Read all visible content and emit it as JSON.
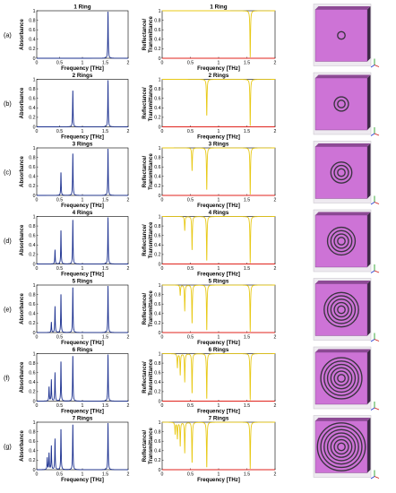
{
  "panel_letters": [
    "(a)",
    "(b)",
    "(c)",
    "(d)",
    "(e)",
    "(f)",
    "(g)"
  ],
  "colors": {
    "absorbance": "#1a2f8f",
    "reflectance": "#e8c916",
    "transmittance": "#e0231c",
    "model_face": "#cd73d6",
    "model_side": "#3b2745",
    "ring": "#3a3340",
    "axis_x_arrow": "#d0201a",
    "axis_y_arrow": "#2aa02a",
    "axis_z_arrow": "#2a3fd0"
  },
  "icons": [
    "metamaterial-model-icon",
    "axes-triad-icon"
  ],
  "chart_data": [
    {
      "type": "line",
      "title": "1 Ring",
      "xlabel": "Frequency [THz]",
      "ylabel": "Absorbance",
      "xlim": [
        0,
        2
      ],
      "ylim": [
        0,
        1
      ],
      "xticks": [
        "0",
        "0.5",
        "1",
        "1.5",
        "2"
      ],
      "yticks": [
        "0",
        "0.2",
        "0.4",
        "0.6",
        "0.8",
        "1"
      ],
      "series": [
        {
          "role": "absorbance",
          "peaks": [
            {
              "x": 1.56,
              "y": 0.98
            }
          ]
        }
      ]
    },
    {
      "type": "line",
      "title": "1 Ring",
      "xlabel": "Frequency [THz]",
      "ylabel": "Reflectance/ Transmittance",
      "xlim": [
        0,
        2
      ],
      "ylim": [
        0,
        1
      ],
      "xticks": [
        "0",
        "0.5",
        "1",
        "1.5",
        "2"
      ],
      "yticks": [
        "0",
        "0.2",
        "0.4",
        "0.6",
        "0.8",
        "1"
      ],
      "series": [
        {
          "role": "reflectance",
          "baseline": 1,
          "dips": [
            {
              "x": 1.56,
              "y": 0.02
            }
          ]
        },
        {
          "role": "transmittance",
          "baseline": 0
        }
      ]
    },
    {
      "type": "line",
      "title": "2 Rings",
      "xlabel": "Frequency [THz]",
      "ylabel": "Absorbance",
      "xlim": [
        0,
        2
      ],
      "ylim": [
        0,
        1
      ],
      "xticks": [
        "0",
        "0.5",
        "1",
        "1.5",
        "2"
      ],
      "yticks": [
        "0",
        "0.2",
        "0.4",
        "0.6",
        "0.8",
        "1"
      ],
      "series": [
        {
          "role": "absorbance",
          "peaks": [
            {
              "x": 0.79,
              "y": 0.78
            },
            {
              "x": 1.56,
              "y": 0.98
            }
          ]
        }
      ]
    },
    {
      "type": "line",
      "title": "2 Rings",
      "xlabel": "Frequency [THz]",
      "ylabel": "Reflectance/ Transmittance",
      "xlim": [
        0,
        2
      ],
      "ylim": [
        0,
        1
      ],
      "xticks": [
        "0",
        "0.5",
        "1",
        "1.5",
        "2"
      ],
      "yticks": [
        "0",
        "0.2",
        "0.4",
        "0.6",
        "0.8",
        "1"
      ],
      "series": [
        {
          "role": "reflectance",
          "baseline": 1,
          "dips": [
            {
              "x": 0.79,
              "y": 0.22
            },
            {
              "x": 1.56,
              "y": 0.02
            }
          ]
        },
        {
          "role": "transmittance",
          "baseline": 0
        }
      ]
    },
    {
      "type": "line",
      "title": "3 Rings",
      "xlabel": "Frequency [THz]",
      "ylabel": "Absorbance",
      "xlim": [
        0,
        2
      ],
      "ylim": [
        0,
        1
      ],
      "xticks": [
        "0",
        "0.5",
        "1",
        "1.5",
        "2"
      ],
      "yticks": [
        "0",
        "0.2",
        "0.4",
        "0.6",
        "0.8",
        "1"
      ],
      "series": [
        {
          "role": "absorbance",
          "peaks": [
            {
              "x": 0.53,
              "y": 0.49
            },
            {
              "x": 0.79,
              "y": 0.9
            },
            {
              "x": 1.56,
              "y": 0.98
            }
          ]
        }
      ]
    },
    {
      "type": "line",
      "title": "3 Rings",
      "xlabel": "Frequency [THz]",
      "ylabel": "Reflectance/ Transmittance",
      "xlim": [
        0,
        2
      ],
      "ylim": [
        0,
        1
      ],
      "xticks": [
        "0",
        "0.5",
        "1",
        "1.5",
        "2"
      ],
      "yticks": [
        "0",
        "0.2",
        "0.4",
        "0.6",
        "0.8",
        "1"
      ],
      "series": [
        {
          "role": "reflectance",
          "baseline": 1,
          "dips": [
            {
              "x": 0.53,
              "y": 0.51
            },
            {
              "x": 0.79,
              "y": 0.1
            },
            {
              "x": 1.56,
              "y": 0.02
            }
          ]
        },
        {
          "role": "transmittance",
          "baseline": 0
        }
      ]
    },
    {
      "type": "line",
      "title": "4 Rings",
      "xlabel": "Frequency [THz]",
      "ylabel": "Absorbance",
      "xlim": [
        0,
        2
      ],
      "ylim": [
        0,
        1
      ],
      "xticks": [
        "0",
        "0.5",
        "1",
        "1.5",
        "2"
      ],
      "yticks": [
        "0",
        "0.2",
        "0.4",
        "0.6",
        "0.8",
        "1"
      ],
      "series": [
        {
          "role": "absorbance",
          "peaks": [
            {
              "x": 0.4,
              "y": 0.3
            },
            {
              "x": 0.53,
              "y": 0.72
            },
            {
              "x": 0.79,
              "y": 0.95
            },
            {
              "x": 1.56,
              "y": 0.98
            }
          ]
        }
      ]
    },
    {
      "type": "line",
      "title": "4 Rings",
      "xlabel": "Frequency [THz]",
      "ylabel": "Reflectance/ Transmittance",
      "xlim": [
        0,
        2
      ],
      "ylim": [
        0,
        1
      ],
      "xticks": [
        "0",
        "0.5",
        "1",
        "1.5",
        "2"
      ],
      "yticks": [
        "0",
        "0.2",
        "0.4",
        "0.6",
        "0.8",
        "1"
      ],
      "series": [
        {
          "role": "reflectance",
          "baseline": 1,
          "dips": [
            {
              "x": 0.4,
              "y": 0.7
            },
            {
              "x": 0.53,
              "y": 0.28
            },
            {
              "x": 0.79,
              "y": 0.05
            },
            {
              "x": 1.56,
              "y": 0.02
            }
          ]
        },
        {
          "role": "transmittance",
          "baseline": 0
        }
      ]
    },
    {
      "type": "line",
      "title": "5 Rings",
      "xlabel": "Frequency [THz]",
      "ylabel": "Absorbance",
      "xlim": [
        0,
        2
      ],
      "ylim": [
        0,
        1
      ],
      "xticks": [
        "0",
        "0.5",
        "1",
        "1.5",
        "2"
      ],
      "yticks": [
        "0",
        "0.2",
        "0.4",
        "0.6",
        "0.8",
        "1"
      ],
      "series": [
        {
          "role": "absorbance",
          "peaks": [
            {
              "x": 0.32,
              "y": 0.22
            },
            {
              "x": 0.4,
              "y": 0.55
            },
            {
              "x": 0.53,
              "y": 0.82
            },
            {
              "x": 0.79,
              "y": 0.97
            },
            {
              "x": 1.56,
              "y": 0.98
            }
          ]
        }
      ]
    },
    {
      "type": "line",
      "title": "5 Rings",
      "xlabel": "Frequency [THz]",
      "ylabel": "Reflectance/ Transmittance",
      "xlim": [
        0,
        2
      ],
      "ylim": [
        0,
        1
      ],
      "xticks": [
        "0",
        "0.5",
        "1",
        "1.5",
        "2"
      ],
      "yticks": [
        "0",
        "0.2",
        "0.4",
        "0.6",
        "0.8",
        "1"
      ],
      "series": [
        {
          "role": "reflectance",
          "baseline": 1,
          "dips": [
            {
              "x": 0.32,
              "y": 0.78
            },
            {
              "x": 0.4,
              "y": 0.45
            },
            {
              "x": 0.53,
              "y": 0.18
            },
            {
              "x": 0.79,
              "y": 0.03
            },
            {
              "x": 1.56,
              "y": 0.02
            }
          ]
        },
        {
          "role": "transmittance",
          "baseline": 0
        }
      ]
    },
    {
      "type": "line",
      "title": "6 Rings",
      "xlabel": "Frequency [THz]",
      "ylabel": "Absorbance",
      "xlim": [
        0,
        2
      ],
      "ylim": [
        0,
        1
      ],
      "xticks": [
        "0",
        "0.5",
        "1",
        "1.5",
        "2"
      ],
      "yticks": [
        "0",
        "0.2",
        "0.4",
        "0.6",
        "0.8",
        "1"
      ],
      "series": [
        {
          "role": "absorbance",
          "peaks": [
            {
              "x": 0.27,
              "y": 0.3
            },
            {
              "x": 0.32,
              "y": 0.45
            },
            {
              "x": 0.4,
              "y": 0.6
            },
            {
              "x": 0.53,
              "y": 0.85
            },
            {
              "x": 0.79,
              "y": 0.97
            },
            {
              "x": 1.56,
              "y": 0.98
            }
          ]
        }
      ]
    },
    {
      "type": "line",
      "title": "6 Rings",
      "xlabel": "Frequency [THz]",
      "ylabel": "Reflectance/ Transmittance",
      "xlim": [
        0,
        2
      ],
      "ylim": [
        0,
        1
      ],
      "xticks": [
        "0",
        "0.5",
        "1",
        "1.5",
        "2"
      ],
      "yticks": [
        "0",
        "0.2",
        "0.4",
        "0.6",
        "0.8",
        "1"
      ],
      "series": [
        {
          "role": "reflectance",
          "baseline": 1,
          "dips": [
            {
              "x": 0.27,
              "y": 0.7
            },
            {
              "x": 0.32,
              "y": 0.55
            },
            {
              "x": 0.4,
              "y": 0.4
            },
            {
              "x": 0.53,
              "y": 0.15
            },
            {
              "x": 0.79,
              "y": 0.03
            },
            {
              "x": 1.56,
              "y": 0.02
            }
          ]
        },
        {
          "role": "transmittance",
          "baseline": 0
        }
      ]
    },
    {
      "type": "line",
      "title": "7 Rings",
      "xlabel": "Frequency [THz]",
      "ylabel": "Absorbance",
      "xlim": [
        0,
        2
      ],
      "ylim": [
        0,
        1
      ],
      "xticks": [
        "0",
        "0.5",
        "1",
        "1.5",
        "2"
      ],
      "yticks": [
        "0",
        "0.2",
        "0.4",
        "0.6",
        "0.8",
        "1"
      ],
      "series": [
        {
          "role": "absorbance",
          "peaks": [
            {
              "x": 0.23,
              "y": 0.25
            },
            {
              "x": 0.27,
              "y": 0.35
            },
            {
              "x": 0.32,
              "y": 0.5
            },
            {
              "x": 0.4,
              "y": 0.65
            },
            {
              "x": 0.53,
              "y": 0.87
            },
            {
              "x": 0.79,
              "y": 0.97
            },
            {
              "x": 1.56,
              "y": 0.98
            }
          ]
        }
      ]
    },
    {
      "type": "line",
      "title": "7 Rings",
      "xlabel": "Frequency [THz]",
      "ylabel": "Reflectance/ Transmittance",
      "xlim": [
        0,
        2
      ],
      "ylim": [
        0,
        1
      ],
      "xticks": [
        "0",
        "0.5",
        "1",
        "1.5",
        "2"
      ],
      "yticks": [
        "0",
        "0.2",
        "0.4",
        "0.6",
        "0.8",
        "1"
      ],
      "series": [
        {
          "role": "reflectance",
          "baseline": 1,
          "dips": [
            {
              "x": 0.23,
              "y": 0.75
            },
            {
              "x": 0.27,
              "y": 0.65
            },
            {
              "x": 0.32,
              "y": 0.5
            },
            {
              "x": 0.4,
              "y": 0.35
            },
            {
              "x": 0.53,
              "y": 0.13
            },
            {
              "x": 0.79,
              "y": 0.03
            },
            {
              "x": 1.56,
              "y": 0.02
            }
          ]
        },
        {
          "role": "transmittance",
          "baseline": 0
        }
      ]
    }
  ],
  "models": [
    {
      "rings": 1
    },
    {
      "rings": 2
    },
    {
      "rings": 3
    },
    {
      "rings": 4
    },
    {
      "rings": 5
    },
    {
      "rings": 6
    },
    {
      "rings": 7
    }
  ]
}
